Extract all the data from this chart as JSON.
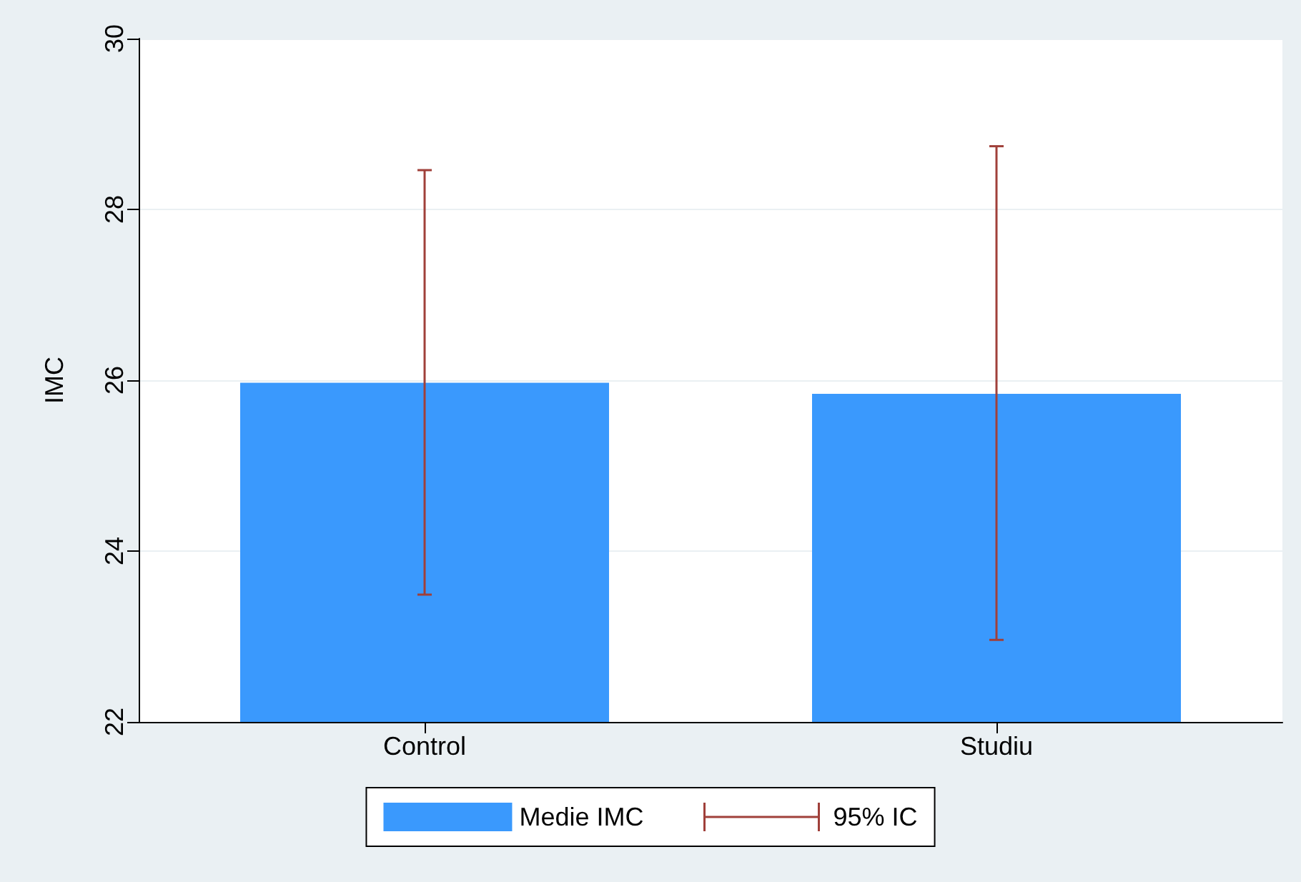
{
  "chart_data": {
    "type": "bar",
    "ylabel": "IMC",
    "categories": [
      "Control",
      "Studiu"
    ],
    "series": [
      {
        "name": "Medie IMC",
        "color": "#3a99fd",
        "values": [
          25.97,
          25.84
        ],
        "errors": [
          [
            23.49,
            28.46
          ],
          [
            22.96,
            28.74
          ]
        ]
      }
    ],
    "annotations": [
      "95% IC"
    ],
    "ylim": [
      22,
      30
    ],
    "yticks": [
      22,
      24,
      26,
      28,
      30
    ],
    "grid": "y",
    "legend": "bottom"
  }
}
